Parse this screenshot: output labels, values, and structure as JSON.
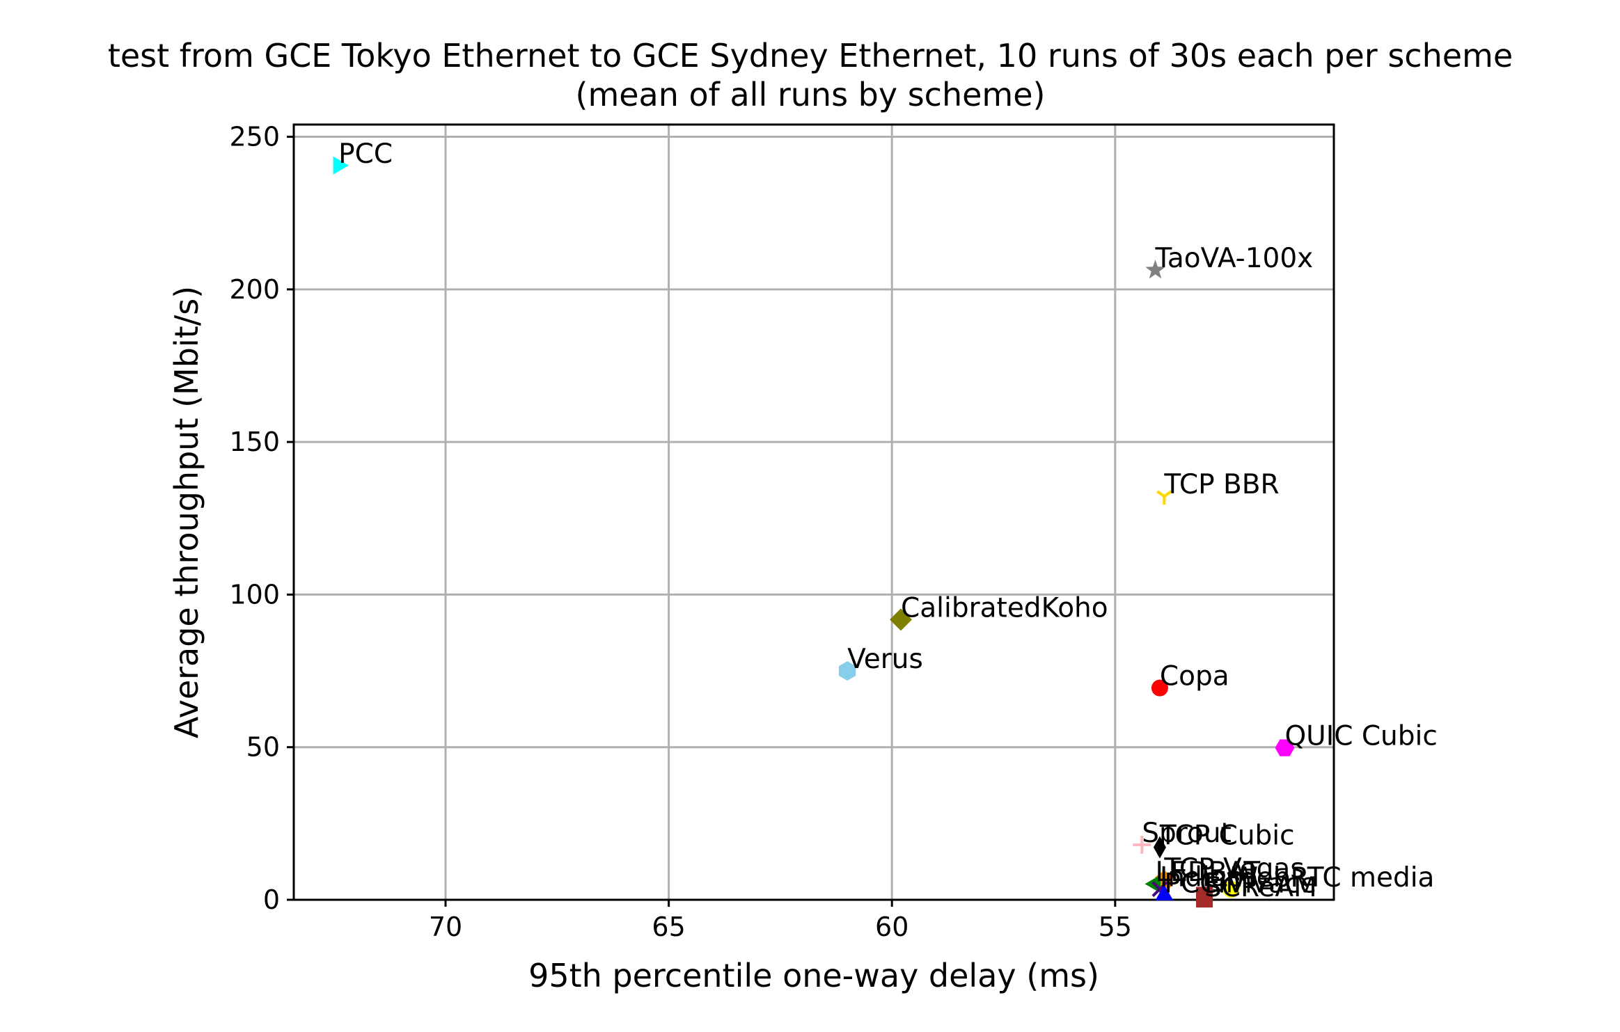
{
  "chart_data": {
    "type": "scatter",
    "title_lines": [
      "test from GCE Tokyo Ethernet to GCE Sydney Ethernet, 10 runs of 30s each per scheme",
      "(mean of all runs by scheme)"
    ],
    "xlabel": "95th percentile one-way delay (ms)",
    "ylabel": "Average throughput (Mbit/s)",
    "x_inverted": true,
    "xlim": [
      73.4,
      50.1
    ],
    "ylim": [
      0,
      254
    ],
    "xticks": [
      70,
      65,
      60,
      55
    ],
    "yticks": [
      0,
      50,
      100,
      150,
      200,
      250
    ],
    "grid": true,
    "legend": "none",
    "points": [
      {
        "label": "PCC",
        "x": 72.4,
        "y": 240.6,
        "marker": "triangle-right",
        "color": "#00ffff"
      },
      {
        "label": "TaoVA-100x",
        "x": 54.1,
        "y": 206.3,
        "marker": "star",
        "color": "#808080"
      },
      {
        "label": "TCP BBR",
        "x": 53.9,
        "y": 132.2,
        "marker": "tri-down",
        "color": "#ffd700"
      },
      {
        "label": "CalibratedKoho",
        "x": 59.8,
        "y": 91.8,
        "marker": "diamond",
        "color": "#808000"
      },
      {
        "label": "Verus",
        "x": 61.0,
        "y": 75.0,
        "marker": "hexagon",
        "color": "#87ceeb"
      },
      {
        "label": "Copa",
        "x": 54.0,
        "y": 69.4,
        "marker": "circle",
        "color": "#ff0000"
      },
      {
        "label": "QUIC Cubic",
        "x": 51.2,
        "y": 49.8,
        "marker": "hexagon-flat",
        "color": "#ff00ff"
      },
      {
        "label": "Sprout",
        "x": 54.4,
        "y": 18.0,
        "marker": "plus",
        "color": "#ffb6c1"
      },
      {
        "label": "TCP Cubic",
        "x": 54.0,
        "y": 17.2,
        "marker": "thin-diamond",
        "color": "#000000"
      },
      {
        "label": "TCP Vegas",
        "x": 53.9,
        "y": 6.4,
        "marker": "pentagon",
        "color": "#ff8c00"
      },
      {
        "label": "LEDBAT",
        "x": 54.1,
        "y": 5.2,
        "marker": "triangle-left",
        "color": "#008000"
      },
      {
        "label": "Indigo",
        "x": 54.0,
        "y": 3.5,
        "marker": "x",
        "color": "#4b0082"
      },
      {
        "label": "WebRTC media",
        "x": 52.4,
        "y": 3.4,
        "marker": "circle",
        "color": "#ffff00"
      },
      {
        "label": "FillP",
        "x": 53.0,
        "y": 1.5,
        "marker": "square",
        "color": "#a52a2a"
      },
      {
        "label": "SCReAM",
        "x": 53.0,
        "y": 0.2,
        "marker": "square",
        "color": "#a52a2a"
      },
      {
        "label": "PCC-Vivace",
        "x": 53.9,
        "y": 1.5,
        "marker": "triangle-up",
        "color": "#0000ff"
      }
    ]
  }
}
